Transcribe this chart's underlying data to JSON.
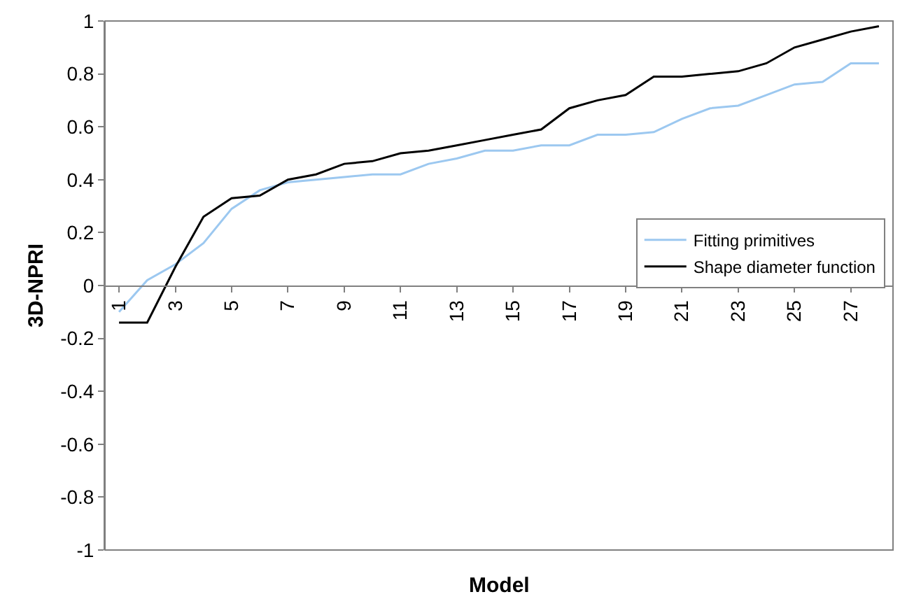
{
  "chart_data": {
    "type": "line",
    "xlabel": "Model",
    "ylabel": "3D-NPRI",
    "categories": [
      "1",
      null,
      "3",
      null,
      "5",
      null,
      "7",
      null,
      "9",
      null,
      "11",
      null,
      "13",
      null,
      "15",
      null,
      "17",
      null,
      "19",
      null,
      "21",
      null,
      "23",
      null,
      "25",
      null,
      "27",
      null
    ],
    "series": [
      {
        "name": "Fitting primitives",
        "color": "#9cc8f0",
        "values": [
          -0.1,
          0.02,
          0.08,
          0.16,
          0.29,
          0.36,
          0.39,
          0.4,
          0.41,
          0.42,
          0.42,
          0.46,
          0.48,
          0.51,
          0.51,
          0.53,
          0.53,
          0.57,
          0.57,
          0.58,
          0.63,
          0.67,
          0.68,
          0.72,
          0.76,
          0.77,
          0.84,
          0.84
        ]
      },
      {
        "name": "Shape diameter function",
        "color": "#000000",
        "values": [
          -0.14,
          -0.14,
          0.07,
          0.26,
          0.33,
          0.34,
          0.4,
          0.42,
          0.46,
          0.47,
          0.5,
          0.51,
          0.53,
          0.55,
          0.57,
          0.59,
          0.67,
          0.7,
          0.72,
          0.79,
          0.79,
          0.8,
          0.81,
          0.84,
          0.9,
          0.93,
          0.96,
          0.98
        ]
      }
    ],
    "ylim": [
      -1,
      1
    ],
    "yticks": [
      {
        "value": -1,
        "label": "-1"
      },
      {
        "value": -0.8,
        "label": "-0.8"
      },
      {
        "value": -0.6,
        "label": "-0.6"
      },
      {
        "value": -0.4,
        "label": "-0.4"
      },
      {
        "value": -0.2,
        "label": "-0.2"
      },
      0,
      0.2,
      0.4,
      0.6,
      0.8,
      1
    ],
    "legend": "right",
    "marker": "none",
    "line_style": "solid"
  }
}
